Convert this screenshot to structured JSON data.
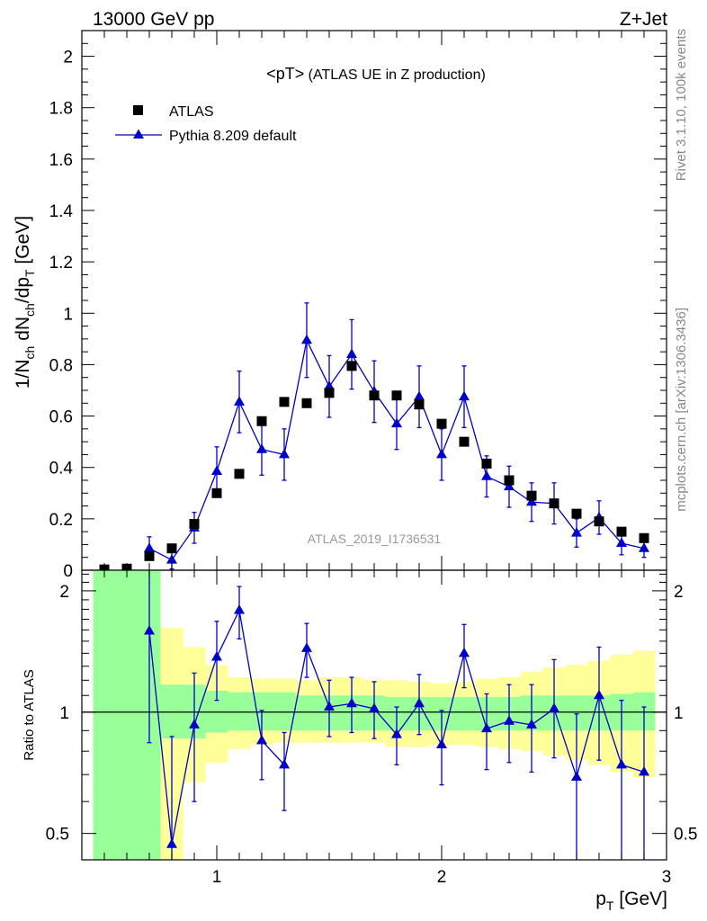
{
  "header": {
    "left": "13000 GeV pp",
    "right": "Z+Jet"
  },
  "side_labels": {
    "rivet": "Rivet 3.1.10,  100k events",
    "mcplots": "mcplots.cern.ch [arXiv:1306.3436]"
  },
  "plot_title": "<pT> (ATLAS UE in Z production)",
  "analysis_tag": "ATLAS_2019_I1736531",
  "colors": {
    "atlas": "#000000",
    "pythia": "#0000cc",
    "band_inner": "#99ff99",
    "band_outer": "#ffff99"
  },
  "chart_data": [
    {
      "type": "scatter",
      "name": "main",
      "title": "<pT> (ATLAS UE in Z production)",
      "ylabel": "1/N_ch dN_ch/dp_T [GeV]",
      "xlabel": "",
      "xlim": [
        0.4,
        3.0
      ],
      "ylim": [
        0.0,
        2.1
      ],
      "x_ticks": [],
      "y_ticks": [
        "0",
        "0.2",
        "0.4",
        "0.6",
        "0.8",
        "1",
        "1.2",
        "1.4",
        "1.6",
        "1.8",
        "2"
      ],
      "legend": {
        "placement": "top-left",
        "entries": [
          "ATLAS",
          "Pythia 8.209 default"
        ]
      },
      "series": [
        {
          "name": "ATLAS",
          "marker": "square",
          "x": [
            0.5,
            0.6,
            0.7,
            0.8,
            0.9,
            1.0,
            1.1,
            1.2,
            1.3,
            1.4,
            1.5,
            1.6,
            1.7,
            1.8,
            1.9,
            2.0,
            2.1,
            2.2,
            2.3,
            2.4,
            2.5,
            2.6,
            2.7,
            2.8,
            2.9
          ],
          "y": [
            0.003,
            0.006,
            0.055,
            0.085,
            0.18,
            0.3,
            0.375,
            0.58,
            0.655,
            0.65,
            0.69,
            0.795,
            0.68,
            0.68,
            0.645,
            0.57,
            0.5,
            0.415,
            0.35,
            0.29,
            0.26,
            0.22,
            0.19,
            0.15,
            0.125
          ]
        },
        {
          "name": "Pythia 8.209 default",
          "marker": "triangle",
          "x": [
            0.7,
            0.8,
            0.9,
            1.0,
            1.1,
            1.2,
            1.3,
            1.4,
            1.5,
            1.6,
            1.7,
            1.8,
            1.9,
            2.0,
            2.1,
            2.2,
            2.3,
            2.4,
            2.5,
            2.6,
            2.7,
            2.8,
            2.9
          ],
          "y": [
            0.085,
            0.04,
            0.165,
            0.385,
            0.655,
            0.47,
            0.45,
            0.895,
            0.715,
            0.84,
            0.695,
            0.57,
            0.675,
            0.45,
            0.675,
            0.365,
            0.325,
            0.265,
            0.26,
            0.145,
            0.205,
            0.105,
            0.085
          ],
          "err": [
            0.045,
            0.035,
            0.06,
            0.095,
            0.12,
            0.1,
            0.1,
            0.145,
            0.12,
            0.135,
            0.12,
            0.1,
            0.12,
            0.1,
            0.12,
            0.08,
            0.08,
            0.075,
            0.08,
            0.055,
            0.065,
            0.045,
            0.035
          ]
        }
      ]
    },
    {
      "type": "scatter",
      "name": "ratio",
      "ylabel": "Ratio to ATLAS",
      "xlabel": "p_T [GeV]",
      "xlim": [
        0.4,
        3.0
      ],
      "ylim": [
        0.43,
        2.25
      ],
      "x_ticks": [
        "1",
        "2",
        "3"
      ],
      "y_ticks": [
        "0.5",
        "1",
        "2"
      ],
      "reference_line": 1.0,
      "bands": {
        "x_edges": [
          0.45,
          0.55,
          0.65,
          0.75,
          0.85,
          0.95,
          1.05,
          1.15,
          1.25,
          1.35,
          1.45,
          1.55,
          1.65,
          1.75,
          1.85,
          1.95,
          2.05,
          2.15,
          2.25,
          2.35,
          2.45,
          2.55,
          2.65,
          2.75,
          2.85,
          2.95
        ],
        "inner_lo": [
          0.43,
          0.43,
          0.43,
          0.86,
          0.86,
          0.89,
          0.9,
          0.9,
          0.9,
          0.9,
          0.9,
          0.9,
          0.9,
          0.9,
          0.9,
          0.9,
          0.9,
          0.9,
          0.9,
          0.9,
          0.9,
          0.9,
          0.9,
          0.9,
          0.9
        ],
        "inner_hi": [
          2.25,
          2.25,
          2.25,
          1.17,
          1.17,
          1.13,
          1.12,
          1.12,
          1.12,
          1.1,
          1.1,
          1.1,
          1.1,
          1.09,
          1.09,
          1.09,
          1.09,
          1.09,
          1.09,
          1.1,
          1.1,
          1.1,
          1.1,
          1.11,
          1.12
        ],
        "outer_lo": [
          0.43,
          0.43,
          0.43,
          0.43,
          0.67,
          0.75,
          0.81,
          0.83,
          0.84,
          0.84,
          0.84,
          0.84,
          0.84,
          0.82,
          0.82,
          0.83,
          0.83,
          0.82,
          0.81,
          0.8,
          0.78,
          0.76,
          0.74,
          0.71,
          0.69
        ],
        "outer_hi": [
          2.25,
          2.25,
          2.25,
          1.62,
          1.45,
          1.31,
          1.22,
          1.21,
          1.21,
          1.2,
          1.22,
          1.22,
          1.2,
          1.2,
          1.19,
          1.18,
          1.19,
          1.21,
          1.22,
          1.26,
          1.29,
          1.31,
          1.34,
          1.39,
          1.42
        ]
      },
      "series": [
        {
          "name": "Pythia 8.209 default",
          "marker": "triangle",
          "x": [
            0.7,
            0.8,
            0.9,
            1.0,
            1.1,
            1.2,
            1.3,
            1.4,
            1.5,
            1.6,
            1.7,
            1.8,
            1.9,
            2.0,
            2.1,
            2.2,
            2.3,
            2.4,
            2.5,
            2.6,
            2.7,
            2.8,
            2.9
          ],
          "y": [
            1.59,
            0.47,
            0.93,
            1.37,
            1.79,
            0.85,
            0.74,
            1.44,
            1.03,
            1.05,
            1.02,
            0.88,
            1.05,
            0.83,
            1.4,
            0.91,
            0.95,
            0.93,
            1.02,
            0.69,
            1.1,
            0.74,
            0.71
          ],
          "err_lo": [
            0.75,
            0.43,
            0.33,
            0.3,
            0.27,
            0.17,
            0.17,
            0.22,
            0.16,
            0.16,
            0.16,
            0.14,
            0.17,
            0.17,
            0.25,
            0.19,
            0.2,
            0.22,
            0.25,
            0.28,
            0.34,
            0.32,
            0.3
          ],
          "err_hi": [
            0.75,
            0.4,
            0.32,
            0.31,
            0.26,
            0.16,
            0.15,
            0.22,
            0.17,
            0.17,
            0.17,
            0.15,
            0.19,
            0.18,
            0.25,
            0.2,
            0.22,
            0.24,
            0.33,
            0.3,
            0.35,
            0.33,
            0.32
          ]
        }
      ]
    }
  ]
}
